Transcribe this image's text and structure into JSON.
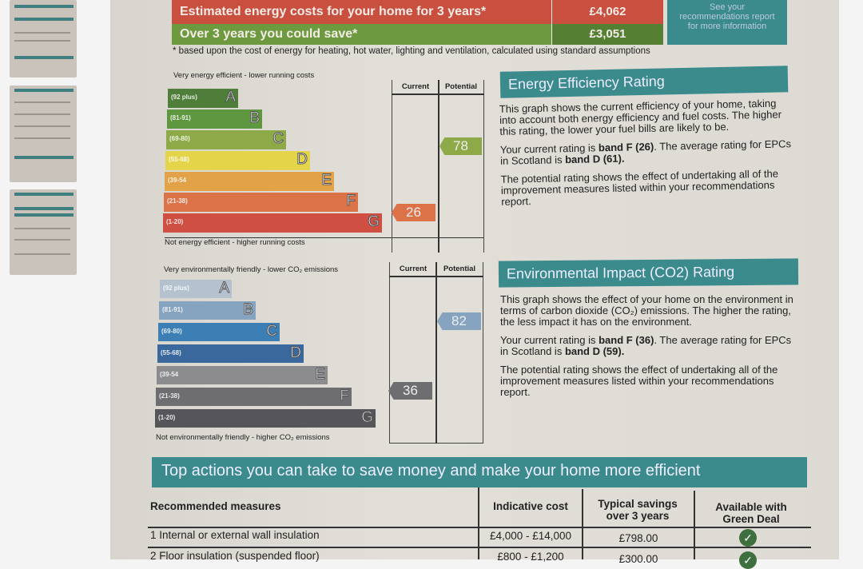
{
  "thumbnails": [
    {
      "name": "page-1"
    },
    {
      "name": "page-2"
    },
    {
      "name": "page-3"
    }
  ],
  "costs": {
    "row1_label": "Estimated energy costs for your home for 3 years*",
    "row1_value": "£4,062",
    "row2_label": "Over 3 years you could save*",
    "row2_value": "£3,051",
    "side_note": "See your recommendations report for more information",
    "footnote": "* based upon the cost of energy for heating, hot water, lighting and ventilation, calculated using standard assumptions"
  },
  "energy_chart": {
    "top_caption": "Very energy efficient - lower running costs",
    "bottom_caption": "Not energy efficient - higher running costs",
    "col_current": "Current",
    "col_potential": "Potential",
    "current": "26",
    "potential": "78",
    "current_band": "F",
    "potential_band": "C",
    "bands": [
      {
        "letter": "A",
        "range": "(92 plus)",
        "color": "#4f7d3a"
      },
      {
        "letter": "B",
        "range": "(81-91)",
        "color": "#5f9640"
      },
      {
        "letter": "C",
        "range": "(69-80)",
        "color": "#8eaa48"
      },
      {
        "letter": "D",
        "range": "(55-68)",
        "color": "#e3d44a"
      },
      {
        "letter": "E",
        "range": "(39-54",
        "color": "#e1a248"
      },
      {
        "letter": "F",
        "range": "(21-38)",
        "color": "#dc7348"
      },
      {
        "letter": "G",
        "range": "(1-20)",
        "color": "#d04f43"
      }
    ],
    "arrow_current_color": "#dc7348",
    "arrow_potential_color": "#8eaa48"
  },
  "env_chart": {
    "top_caption": "Very environmentally friendly - lower CO₂ emissions",
    "bottom_caption": "Not environmentally friendly - higher CO₂ emissions",
    "col_current": "Current",
    "col_potential": "Potential",
    "current": "36",
    "potential": "82",
    "current_band": "F",
    "potential_band": "B",
    "bands": [
      {
        "letter": "A",
        "range": "(92 plus)",
        "color": "#b4c2cf"
      },
      {
        "letter": "B",
        "range": "(81-91)",
        "color": "#86a3bf"
      },
      {
        "letter": "C",
        "range": "(69-80)",
        "color": "#3b7fb5"
      },
      {
        "letter": "D",
        "range": "(55-68)",
        "color": "#3a689c"
      },
      {
        "letter": "E",
        "range": "(39-54",
        "color": "#8c8c8f"
      },
      {
        "letter": "F",
        "range": "(21-38)",
        "color": "#6e6e71"
      },
      {
        "letter": "G",
        "range": "(1-20)",
        "color": "#56565a"
      }
    ],
    "arrow_current_color": "#6e6e71",
    "arrow_potential_color": "#86a3bf"
  },
  "energy_text": {
    "title": "Energy Efficiency Rating",
    "p1": "This graph shows the current efficiency of your home, taking into account both energy efficiency and fuel costs. The higher this rating, the lower your fuel bills are likely to be.",
    "p2_a": "Your current rating is ",
    "p2_b": "band F (26)",
    "p2_c": ". The average rating for EPCs in Scotland is ",
    "p2_d": "band D (61).",
    "p3": "The potential rating shows the effect of undertaking all of the improvement measures listed within your recommendations report."
  },
  "env_text": {
    "title": "Environmental Impact (CO2) Rating",
    "p1": "This graph shows the effect of your home on the environment in terms of carbon dioxide (CO₂) emissions. The higher the rating, the less impact it has on the environment.",
    "p2_a": "Your current rating is ",
    "p2_b": "band F (36)",
    "p2_c": ". The average rating for EPCs in Scotland is ",
    "p2_d": "band D (59).",
    "p3": "The potential rating shows the effect of undertaking all of the improvement measures listed within your recommendations report."
  },
  "actions": {
    "title": "Top actions you can take to save money and make your home more efficient",
    "headers": [
      "Recommended measures",
      "Indicative cost",
      "Typical savings over 3 years",
      "Available with Green Deal"
    ],
    "rows": [
      {
        "measure": "1 Internal or external wall insulation",
        "cost": "£4,000 - £14,000",
        "savings": "£798.00",
        "green_deal": true
      },
      {
        "measure": "2 Floor insulation (suspended floor)",
        "cost": "£800 - £1,200",
        "savings": "£300.00",
        "green_deal": true
      }
    ]
  }
}
